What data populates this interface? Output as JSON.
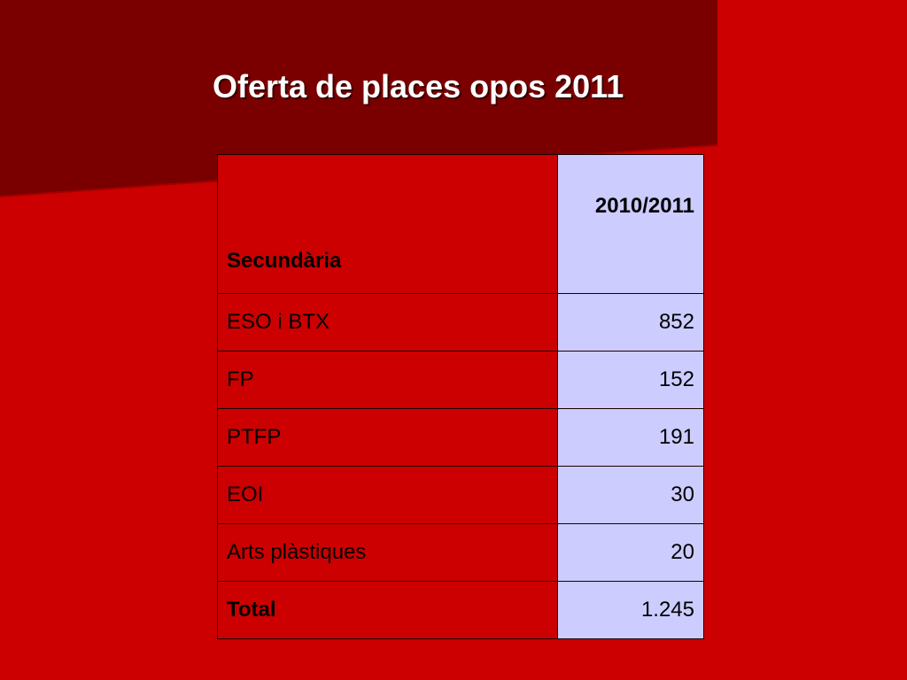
{
  "slide": {
    "title": "Oferta de places opos 2011",
    "colors": {
      "background": "#cc0000",
      "accent_dark": "#7a0000",
      "value_column": "#ccccff",
      "title_text": "#ffffff"
    }
  },
  "table": {
    "header": {
      "label": "Secundària",
      "value": "2010/2011"
    },
    "rows": [
      {
        "label": "ESO i BTX",
        "value": "852"
      },
      {
        "label": "FP",
        "value": "152"
      },
      {
        "label": "PTFP",
        "value": "191"
      },
      {
        "label": "EOI",
        "value": "30"
      },
      {
        "label": "Arts plàstiques",
        "value": "20"
      }
    ],
    "total": {
      "label": "Total",
      "value": "1.245"
    }
  }
}
